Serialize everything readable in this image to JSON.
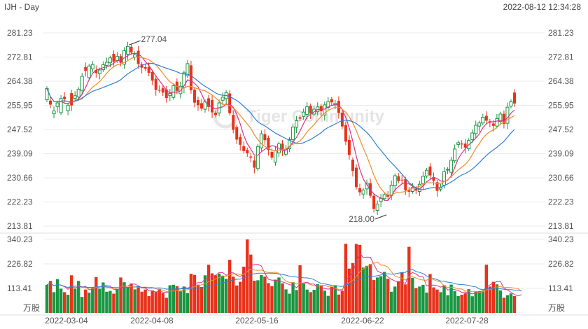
{
  "header": {
    "symbol_interval": "IJH - Day",
    "timestamp": "2022-08-12 12:34:28"
  },
  "watermark": "Tiger Community",
  "colors": {
    "up": "#1a9641",
    "down": "#e8321b",
    "ma5": "#d9328a",
    "ma10": "#f08c2a",
    "ma20": "#2f7fd4",
    "grid": "#ebebeb"
  },
  "chart_data": {
    "type": "candlestick",
    "symbol": "IJH",
    "interval": "Day",
    "price_axis": {
      "ticks": [
        "281.23",
        "272.81",
        "264.38",
        "255.95",
        "247.52",
        "239.09",
        "230.66",
        "222.23",
        "213.81"
      ],
      "ylim": [
        213.81,
        281.23
      ]
    },
    "volume_axis": {
      "ticks": [
        "340.23",
        "226.82",
        "113.41"
      ],
      "unit": "万股",
      "ylim": [
        0,
        340.23
      ]
    },
    "x_ticks": [
      "2022-03-04",
      "2022-04-08",
      "2022-05-16",
      "2022-06-22",
      "2022-07-28"
    ],
    "annotations": [
      {
        "text": "277.04",
        "value": 277.04,
        "bar": 23
      },
      {
        "text": "218.00",
        "value": 218.0,
        "bar": 97
      }
    ],
    "ohlc_close": [
      261.8,
      256.2,
      254.0,
      256.8,
      258.3,
      258.1,
      256.0,
      255.9,
      259.3,
      261.5,
      266.1,
      268.0,
      269.7,
      270.2,
      267.2,
      268.3,
      270.1,
      271.0,
      272.5,
      271.2,
      273.0,
      270.8,
      275.0,
      276.5,
      274.4,
      273.6,
      270.4,
      269.1,
      268.7,
      267.3,
      264.6,
      261.3,
      261.1,
      260.4,
      258.5,
      260.1,
      262.8,
      261.0,
      262.6,
      267.3,
      270.5,
      261.2,
      256.9,
      256.0,
      254.8,
      257.2,
      255.4,
      253.5,
      252.6,
      256.8,
      258.8,
      260.4,
      253.2,
      247.4,
      244.0,
      242.2,
      240.0,
      239.2,
      237.7,
      234.2,
      241.6,
      246.0,
      243.8,
      240.4,
      237.7,
      240.1,
      242.5,
      240.3,
      240.6,
      244.0,
      248.4,
      250.6,
      251.3,
      253.6,
      255.5,
      253.2,
      254.6,
      255.4,
      253.9,
      256.1,
      257.2,
      257.0,
      256.6,
      253.3,
      248.6,
      243.3,
      238.6,
      233.1,
      227.4,
      225.6,
      226.4,
      228.8,
      224.4,
      219.8,
      221.5,
      223.5,
      224.8,
      224.1,
      228.1,
      231.4,
      229.5,
      229.8,
      226.3,
      225.8,
      227.3,
      226.2,
      228.4,
      231.2,
      233.3,
      231.5,
      229.6,
      226.1,
      227.3,
      232.8,
      233.6,
      236.8,
      240.7,
      242.9,
      242.3,
      241.2,
      243.7,
      246.3,
      249.0,
      249.8,
      251.8,
      250.6,
      249.9,
      248.8,
      251.3,
      252.9,
      249.5,
      255.3,
      257.2,
      256.6
    ],
    "ohlc_open": [
      257.9,
      257.6,
      253.0,
      255.5,
      253.4,
      259.0,
      254.1,
      260.2,
      258.4,
      258.9,
      261.2,
      269.3,
      265.6,
      268.7,
      268.3,
      267.0,
      268.4,
      269.9,
      270.8,
      273.9,
      271.6,
      273.1,
      270.3,
      273.8,
      276.4,
      272.8,
      275.0,
      270.3,
      269.3,
      269.3,
      267.6,
      265.2,
      261.3,
      261.9,
      261.5,
      259.4,
      258.7,
      264.2,
      260.0,
      262.2,
      266.3,
      269.9,
      261.4,
      257.8,
      256.7,
      254.6,
      258.4,
      257.8,
      253.4,
      253.3,
      257.7,
      258.3,
      260.1,
      252.6,
      248.4,
      244.9,
      241.7,
      240.4,
      238.1,
      236.7,
      233.9,
      241.1,
      245.9,
      244.6,
      239.7,
      236.1,
      239.4,
      242.6,
      238.9,
      240.8,
      244.0,
      248.3,
      251.8,
      252.1,
      252.8,
      255.8,
      252.9,
      253.7,
      255.7,
      252.6,
      255.2,
      258.1,
      256.2,
      257.5,
      253.4,
      249.1,
      243.9,
      237.0,
      234.2,
      227.0,
      225.0,
      226.8,
      228.8,
      224.4,
      219.3,
      222.4,
      223.4,
      224.8,
      224.5,
      227.9,
      231.2,
      230.0,
      230.2,
      226.3,
      225.9,
      226.9,
      225.9,
      228.6,
      231.3,
      234.6,
      230.9,
      229.1,
      226.7,
      228.1,
      233.5,
      232.6,
      236.6,
      242.3,
      242.6,
      242.6,
      240.8,
      244.0,
      246.1,
      248.7,
      249.8,
      252.3,
      250.4,
      249.6,
      248.7,
      250.3,
      253.0,
      249.7,
      255.7,
      260.4
    ],
    "volume": [
      130,
      148,
      96,
      156,
      112,
      96,
      84,
      174,
      112,
      148,
      74,
      108,
      94,
      118,
      166,
      112,
      141,
      98,
      102,
      89,
      110,
      164,
      142,
      118,
      136,
      109,
      122,
      98,
      108,
      78,
      104,
      96,
      111,
      92,
      70,
      128,
      130,
      124,
      100,
      122,
      92,
      181,
      176,
      131,
      120,
      174,
      223,
      183,
      174,
      182,
      172,
      158,
      246,
      168,
      127,
      144,
      214,
      340,
      270,
      149,
      151,
      175,
      168,
      138,
      124,
      154,
      164,
      137,
      109,
      89,
      142,
      106,
      221,
      136,
      108,
      96,
      107,
      133,
      128,
      103,
      79,
      120,
      128,
      85,
      101,
      320,
      205,
      231,
      319,
      315,
      210,
      218,
      226,
      152,
      164,
      170,
      190,
      158,
      98,
      122,
      147,
      187,
      132,
      306,
      162,
      115,
      122,
      130,
      94,
      180,
      118,
      108,
      96,
      128,
      82,
      131,
      101,
      78,
      84,
      91,
      110,
      77,
      100,
      101,
      103,
      223,
      122,
      144,
      132,
      104,
      70,
      82,
      90,
      78,
      76,
      96
    ],
    "moving_averages": [
      {
        "name": "MA5",
        "color": "#d9328a"
      },
      {
        "name": "MA10",
        "color": "#f08c2a"
      },
      {
        "name": "MA20",
        "color": "#2f7fd4"
      }
    ]
  }
}
